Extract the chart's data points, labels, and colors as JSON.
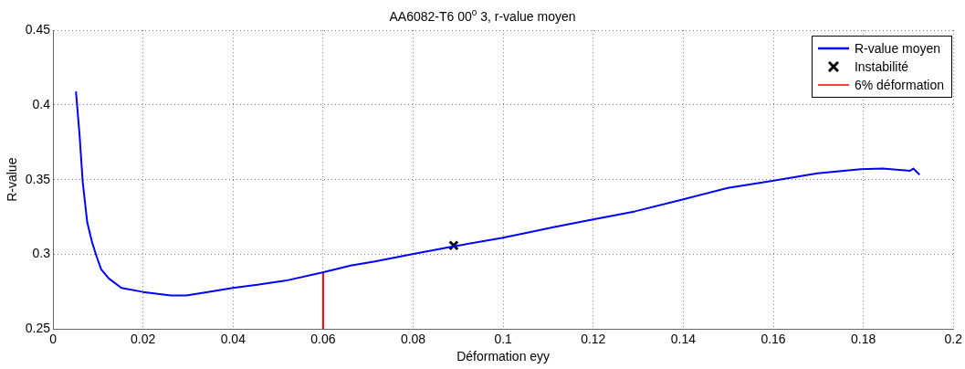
{
  "chart_data": {
    "type": "line",
    "title": "AA6082-T6 00$^{o}$ 3, r-value moyen",
    "xlabel": "Déformation eyy",
    "ylabel": "R-value",
    "xlim": [
      0,
      0.2
    ],
    "xticks": [
      0,
      0.02,
      0.04,
      0.06,
      0.08,
      0.1,
      0.12,
      0.14,
      0.16,
      0.18,
      0.2
    ],
    "ylim": [
      0.25,
      0.45
    ],
    "yticks": [
      0.25,
      0.3,
      0.35,
      0.4,
      0.45
    ],
    "grid": true,
    "legend": "top right",
    "marker": "none",
    "line_style": "solid",
    "series": [
      {
        "name": "R-value moyen",
        "type": "line",
        "color": "#0000ff",
        "x": [
          0.0051,
          0.0059,
          0.0066,
          0.0076,
          0.0087,
          0.0097,
          0.0107,
          0.0124,
          0.0152,
          0.02,
          0.0262,
          0.0296,
          0.0344,
          0.0399,
          0.0454,
          0.0516,
          0.0599,
          0.0661,
          0.0715,
          0.0798,
          0.0887,
          0.0997,
          0.1114,
          0.1197,
          0.1293,
          0.1396,
          0.1499,
          0.1595,
          0.1698,
          0.1794,
          0.1843,
          0.1904,
          0.1911,
          0.1925
        ],
        "values": [
          0.409,
          0.38,
          0.3486,
          0.3215,
          0.3079,
          0.2985,
          0.29,
          0.2839,
          0.2776,
          0.2749,
          0.2726,
          0.2726,
          0.2749,
          0.2776,
          0.2797,
          0.2824,
          0.288,
          0.2926,
          0.2953,
          0.3002,
          0.3052,
          0.311,
          0.3183,
          0.3232,
          0.3288,
          0.3365,
          0.3445,
          0.3491,
          0.3543,
          0.357,
          0.3574,
          0.356,
          0.3574,
          0.3533
        ]
      },
      {
        "name": "Instabilité",
        "type": "scatter",
        "marker": "cross",
        "color": "#000000",
        "x": [
          0.089
        ],
        "values": [
          0.306
        ]
      },
      {
        "name": "6% déformation",
        "type": "line",
        "color": "#ff0000",
        "x": [
          0.06,
          0.06
        ],
        "values": [
          0.25,
          0.288
        ]
      }
    ]
  }
}
